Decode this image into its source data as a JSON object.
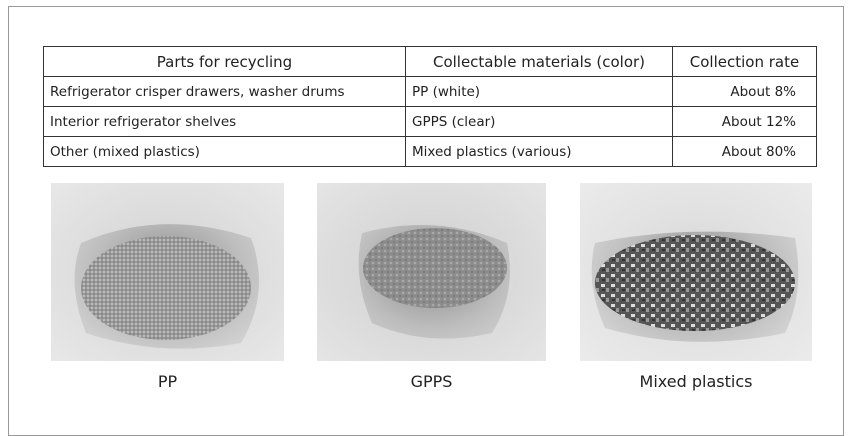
{
  "table": {
    "header": [
      "Parts for recycling",
      "Collectable materials (color)",
      "Collection rate"
    ],
    "rows": [
      [
        "Refrigerator crisper drawers, washer drums",
        "PP (white)",
        "About 8%"
      ],
      [
        "Interior refrigerator shelves",
        "GPPS (clear)",
        "About 12%"
      ],
      [
        "Other (mixed plastics)",
        "Mixed plastics (various)",
        "About 80%"
      ]
    ]
  },
  "photos": [
    {
      "caption": "PP"
    },
    {
      "caption": "GPPS"
    },
    {
      "caption": "Mixed plastics"
    }
  ]
}
